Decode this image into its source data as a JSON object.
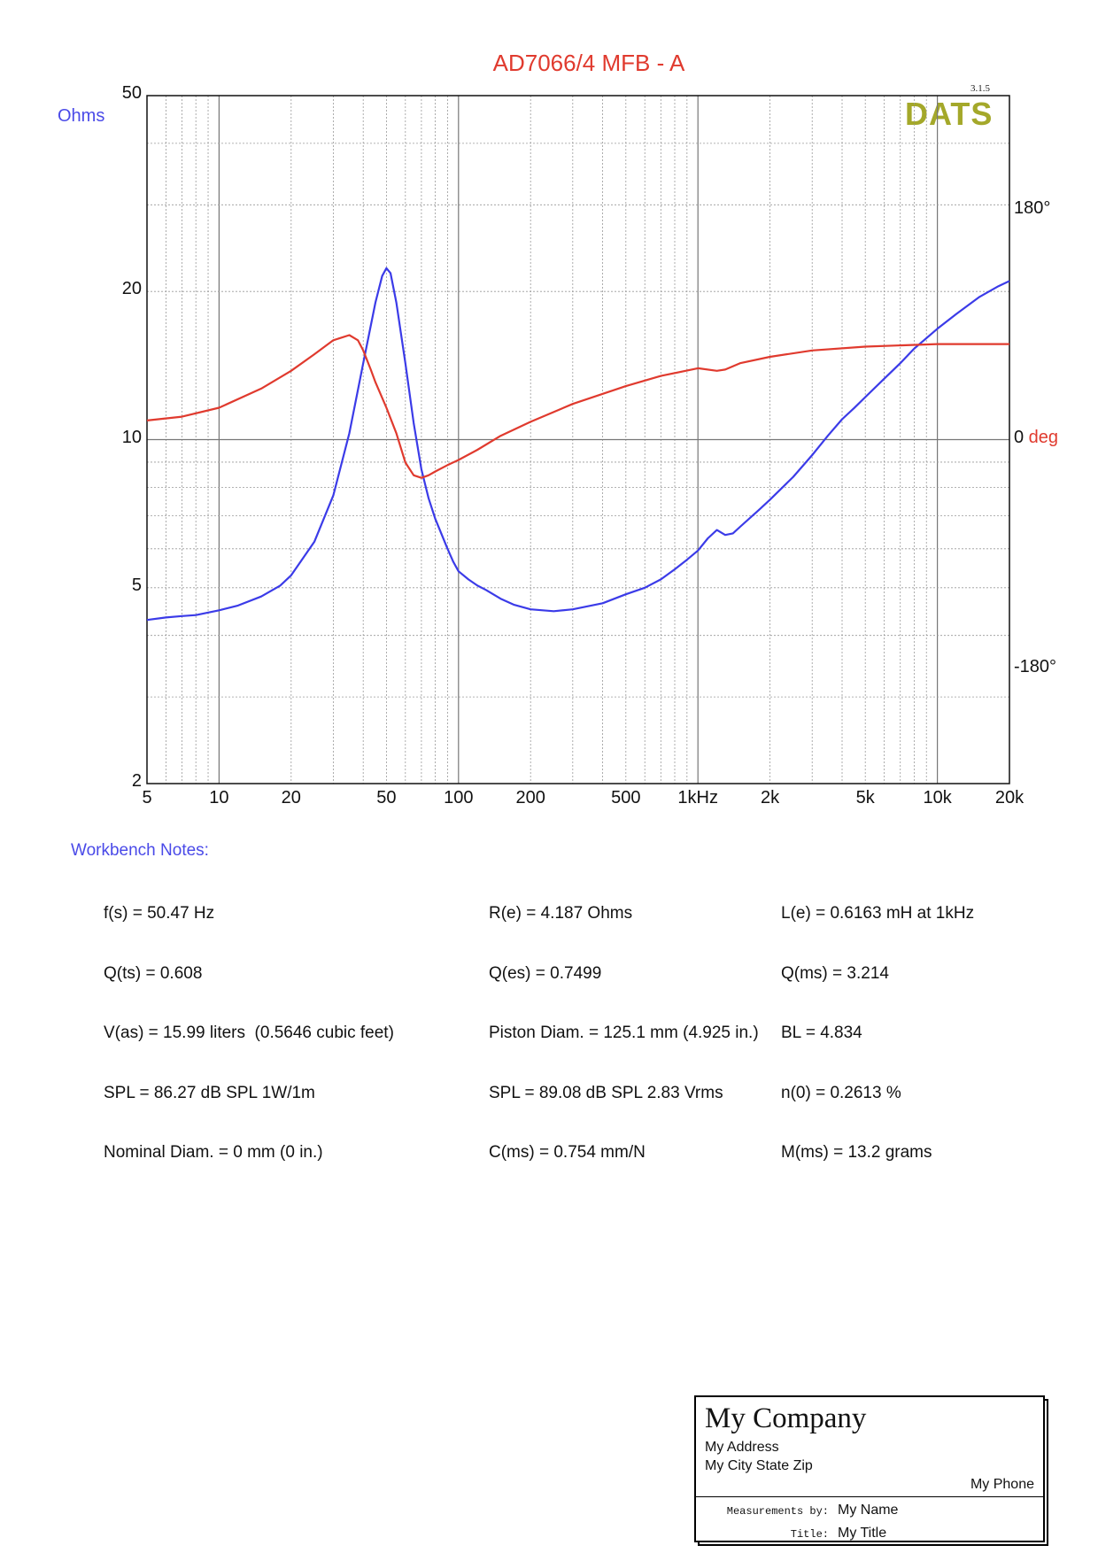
{
  "chart_data": {
    "type": "line",
    "title": "AD7066/4 MFB - A",
    "version": "3.1.5",
    "logo": "DATS",
    "x_scale": "log",
    "xlim": [
      5,
      20000
    ],
    "x_ticks": [
      {
        "v": 5,
        "label": "5"
      },
      {
        "v": 10,
        "label": "10"
      },
      {
        "v": 20,
        "label": "20"
      },
      {
        "v": 50,
        "label": "50"
      },
      {
        "v": 100,
        "label": "100"
      },
      {
        "v": 200,
        "label": "200"
      },
      {
        "v": 500,
        "label": "500"
      },
      {
        "v": 1000,
        "label": "1kHz"
      },
      {
        "v": 2000,
        "label": "2k"
      },
      {
        "v": 5000,
        "label": "5k"
      },
      {
        "v": 10000,
        "label": "10k"
      },
      {
        "v": 20000,
        "label": "20k"
      }
    ],
    "y_left": {
      "label": "Ohms",
      "scale": "log",
      "lim": [
        2,
        50
      ],
      "ticks": [
        50,
        20,
        10,
        5,
        2
      ]
    },
    "y_right": {
      "unit": "deg",
      "lim": [
        -270,
        270
      ],
      "ticks": [
        {
          "v": 180,
          "label": "180°"
        },
        {
          "v": 0,
          "label": "0"
        },
        {
          "v": -180,
          "label": "-180°"
        }
      ]
    },
    "grid": true,
    "series": [
      {
        "color": "#3b3be8",
        "axis": "left",
        "x": [
          5,
          6,
          7,
          8,
          10,
          12,
          15,
          18,
          20,
          25,
          30,
          35,
          40,
          45,
          48,
          50,
          52,
          55,
          60,
          65,
          70,
          75,
          80,
          90,
          95,
          100,
          110,
          120,
          130,
          150,
          170,
          200,
          250,
          300,
          400,
          500,
          600,
          700,
          800,
          900,
          1000,
          1100,
          1200,
          1300,
          1400,
          1500,
          1800,
          2000,
          2500,
          3000,
          3500,
          4000,
          4500,
          5000,
          6000,
          7000,
          8000,
          10000,
          12000,
          15000,
          18000,
          20000
        ],
        "y": [
          4.3,
          4.35,
          4.38,
          4.4,
          4.5,
          4.6,
          4.8,
          5.05,
          5.3,
          6.2,
          7.7,
          10.3,
          14.3,
          19.0,
          21.5,
          22.3,
          21.8,
          19.0,
          14.3,
          10.8,
          8.7,
          7.6,
          6.9,
          6.0,
          5.65,
          5.4,
          5.2,
          5.05,
          4.95,
          4.75,
          4.62,
          4.52,
          4.48,
          4.52,
          4.65,
          4.85,
          5.0,
          5.2,
          5.45,
          5.7,
          5.95,
          6.3,
          6.55,
          6.4,
          6.45,
          6.65,
          7.2,
          7.55,
          8.4,
          9.3,
          10.2,
          11.0,
          11.6,
          12.2,
          13.3,
          14.3,
          15.3,
          16.8,
          18.0,
          19.5,
          20.5,
          21.0
        ]
      },
      {
        "color": "#e03a2e",
        "axis": "right",
        "x": [
          5,
          7,
          10,
          15,
          20,
          25,
          30,
          35,
          38,
          40,
          43,
          45,
          50,
          55,
          60,
          65,
          70,
          75,
          80,
          90,
          100,
          120,
          150,
          200,
          300,
          500,
          700,
          1000,
          1200,
          1300,
          1500,
          2000,
          3000,
          5000,
          10000,
          20000
        ],
        "y": [
          15,
          18,
          25,
          40,
          54,
          67,
          78,
          82,
          78,
          70,
          55,
          45,
          25,
          5,
          -18,
          -28,
          -30,
          -28,
          -25,
          -20,
          -16,
          -8,
          3,
          14,
          28,
          42,
          50,
          56,
          54,
          55,
          60,
          65,
          70,
          73,
          75,
          75
        ]
      }
    ]
  },
  "notes": {
    "title": "Workbench Notes:",
    "col1": [
      "f(s) = 50.47 Hz",
      "Q(ts) = 0.608",
      "V(as) = 15.99 liters  (0.5646 cubic feet)",
      "SPL = 86.27 dB SPL 1W/1m",
      "Nominal Diam. = 0 mm (0 in.)"
    ],
    "col2": [
      "R(e) = 4.187 Ohms",
      "Q(es) = 0.7499",
      "Piston Diam. = 125.1 mm (4.925 in.)",
      "SPL = 89.08 dB SPL 2.83 Vrms",
      "C(ms) = 0.754 mm/N"
    ],
    "col3": [
      "L(e) = 0.6163 mH at 1kHz",
      "Q(ms) = 3.214",
      "BL = 4.834",
      "n(0) = 0.2613 %",
      "M(ms) = 13.2 grams"
    ]
  },
  "title_block": {
    "company": "My Company",
    "address": "My Address",
    "city": "My City State Zip",
    "phone": "My Phone",
    "measured_by_label": "Measurements by:",
    "measured_by": "My Name",
    "title_label": "Title:",
    "title_value": "My Title"
  }
}
